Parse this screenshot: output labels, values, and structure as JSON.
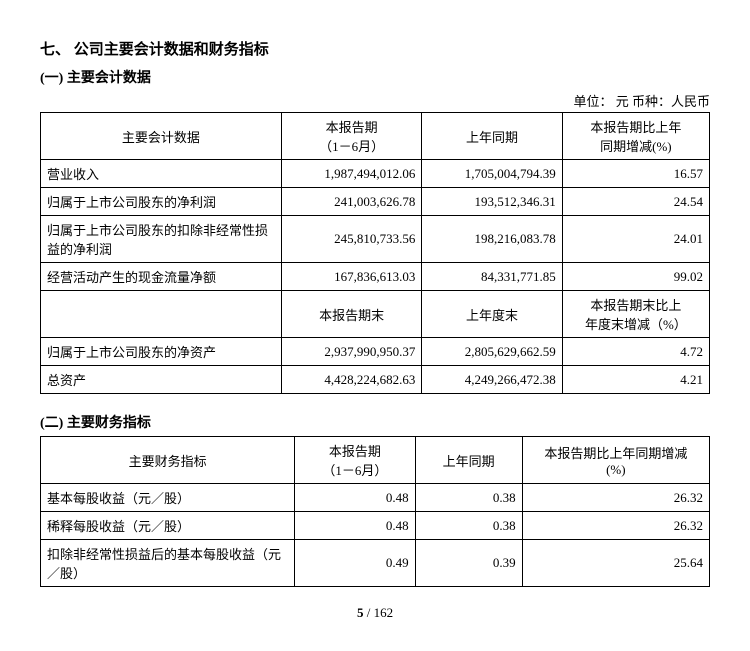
{
  "section": {
    "title": "七、 公司主要会计数据和财务指标",
    "sub1": "(一) 主要会计数据",
    "sub2": "(二) 主要财务指标"
  },
  "unit_line": "单位：  元    币种：人民币",
  "table1": {
    "head": {
      "c0": "主要会计数据",
      "c1_line1": "本报告期",
      "c1_line2": "（1－6月）",
      "c2": "上年同期",
      "c3_line1": "本报告期比上年",
      "c3_line2": "同期增减(%)"
    },
    "rows": [
      {
        "label": "营业收入",
        "cur": "1,987,494,012.06",
        "prev": "1,705,004,794.39",
        "chg": "16.57"
      },
      {
        "label": "归属于上市公司股东的净利润",
        "cur": "241,003,626.78",
        "prev": "193,512,346.31",
        "chg": "24.54"
      },
      {
        "label": "归属于上市公司股东的扣除非经常性损益的净利润",
        "cur": "245,810,733.56",
        "prev": "198,216,083.78",
        "chg": "24.01"
      },
      {
        "label": "经营活动产生的现金流量净额",
        "cur": "167,836,613.03",
        "prev": "84,331,771.85",
        "chg": "99.02"
      }
    ],
    "sub_head": {
      "c1": "本报告期末",
      "c2": "上年度末",
      "c3_line1": "本报告期末比上",
      "c3_line2": "年度末增减（%）"
    },
    "rows2": [
      {
        "label": "归属于上市公司股东的净资产",
        "cur": "2,937,990,950.37",
        "prev": "2,805,629,662.59",
        "chg": "4.72"
      },
      {
        "label": "总资产",
        "cur": "4,428,224,682.63",
        "prev": "4,249,266,472.38",
        "chg": "4.21"
      }
    ]
  },
  "table2": {
    "head": {
      "c0": "主要财务指标",
      "c1_line1": "本报告期",
      "c1_line2": "（1－6月）",
      "c2": "上年同期",
      "c3_line1": "本报告期比上年同期增减",
      "c3_line2": "(%)"
    },
    "rows": [
      {
        "label": "基本每股收益（元／股）",
        "cur": "0.48",
        "prev": "0.38",
        "chg": "26.32"
      },
      {
        "label": "稀释每股收益（元／股）",
        "cur": "0.48",
        "prev": "0.38",
        "chg": "26.32"
      },
      {
        "label": "扣除非经常性损益后的基本每股收益（元／股）",
        "cur": "0.49",
        "prev": "0.39",
        "chg": "25.64"
      }
    ]
  },
  "footer": {
    "current": "5",
    "sep": " / ",
    "total": "162"
  }
}
